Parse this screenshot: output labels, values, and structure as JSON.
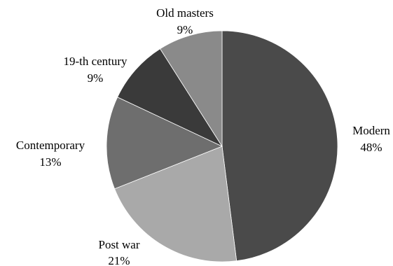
{
  "chart_data": {
    "type": "pie",
    "title": "",
    "start_angle_deg": 0,
    "direction": "clockwise",
    "slices": [
      {
        "label": "Modern",
        "pct_label": "48%",
        "value": 48,
        "color": "#4a4a4a"
      },
      {
        "label": "Post war",
        "pct_label": "21%",
        "value": 21,
        "color": "#a9a9a9"
      },
      {
        "label": "Contemporary",
        "pct_label": "13%",
        "value": 13,
        "color": "#6e6e6e"
      },
      {
        "label": "19-th century",
        "pct_label": "9%",
        "value": 9,
        "color": "#3a3a3a"
      },
      {
        "label": "Old masters",
        "pct_label": "9%",
        "value": 9,
        "color": "#8a8a8a"
      }
    ],
    "legend": "none"
  }
}
